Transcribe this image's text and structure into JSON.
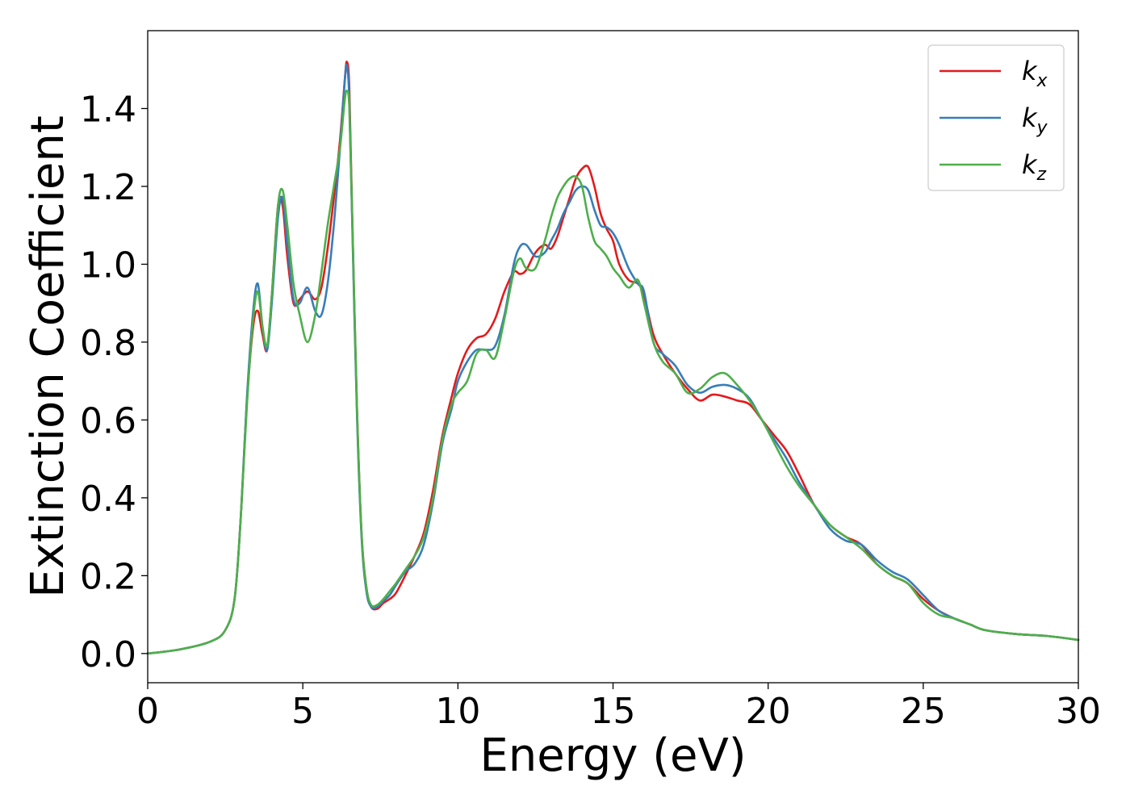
{
  "chart_data": {
    "type": "line",
    "title": "",
    "xlabel": "Energy (eV)",
    "ylabel": "Extinction Coefficient",
    "xlim": [
      0,
      30
    ],
    "ylim": [
      -0.075,
      1.6
    ],
    "xticks": [
      0,
      5,
      10,
      15,
      20,
      25,
      30
    ],
    "xtick_labels": [
      "0",
      "5",
      "10",
      "15",
      "20",
      "25",
      "30"
    ],
    "yticks": [
      0.0,
      0.2,
      0.4,
      0.6,
      0.8,
      1.0,
      1.2,
      1.4
    ],
    "ytick_labels": [
      "0.0",
      "0.2",
      "0.4",
      "0.6",
      "0.8",
      "1.0",
      "1.2",
      "1.4"
    ],
    "grid": false,
    "legend_position": "top-right",
    "series": [
      {
        "name": "k",
        "subscript": "x",
        "color": "#e41a1c",
        "x": [
          0,
          1,
          2,
          2.5,
          2.8,
          3.0,
          3.2,
          3.4,
          3.55,
          3.7,
          3.85,
          4.0,
          4.2,
          4.35,
          4.5,
          4.7,
          4.9,
          5.15,
          5.4,
          5.6,
          5.8,
          6.0,
          6.2,
          6.35,
          6.42,
          6.5,
          6.6,
          6.75,
          6.9,
          7.05,
          7.2,
          7.4,
          7.6,
          7.8,
          8.0,
          8.3,
          8.6,
          8.9,
          9.2,
          9.5,
          9.8,
          10.0,
          10.3,
          10.6,
          10.9,
          11.2,
          11.5,
          11.8,
          12.0,
          12.2,
          12.5,
          12.8,
          13.0,
          13.2,
          13.4,
          13.6,
          13.8,
          14.0,
          14.2,
          14.4,
          14.6,
          14.8,
          15.0,
          15.2,
          15.5,
          15.8,
          16.0,
          16.3,
          16.6,
          17.0,
          17.4,
          17.8,
          18.2,
          18.6,
          19.0,
          19.4,
          19.8,
          20.2,
          20.6,
          21.0,
          21.5,
          22.0,
          22.5,
          23.0,
          23.5,
          24.0,
          24.5,
          25.0,
          25.5,
          26.0,
          26.5,
          27.0,
          28.0,
          29.0,
          30.0
        ],
        "y": [
          0.0,
          0.01,
          0.03,
          0.06,
          0.14,
          0.35,
          0.65,
          0.84,
          0.88,
          0.82,
          0.78,
          0.92,
          1.15,
          1.15,
          1.02,
          0.9,
          0.91,
          0.93,
          0.91,
          0.94,
          1.04,
          1.17,
          1.32,
          1.47,
          1.52,
          1.45,
          1.1,
          0.62,
          0.3,
          0.17,
          0.12,
          0.115,
          0.13,
          0.14,
          0.155,
          0.2,
          0.25,
          0.31,
          0.42,
          0.56,
          0.66,
          0.72,
          0.78,
          0.81,
          0.82,
          0.86,
          0.93,
          0.98,
          0.975,
          0.985,
          1.03,
          1.05,
          1.04,
          1.07,
          1.12,
          1.17,
          1.22,
          1.245,
          1.25,
          1.2,
          1.13,
          1.09,
          1.06,
          1.0,
          0.96,
          0.95,
          0.92,
          0.82,
          0.77,
          0.72,
          0.68,
          0.65,
          0.665,
          0.66,
          0.65,
          0.64,
          0.6,
          0.56,
          0.52,
          0.46,
          0.38,
          0.33,
          0.3,
          0.28,
          0.23,
          0.2,
          0.18,
          0.14,
          0.11,
          0.09,
          0.075,
          0.06,
          0.05,
          0.045,
          0.035
        ]
      },
      {
        "name": "k",
        "subscript": "y",
        "color": "#377eb8",
        "x": [
          0,
          1,
          2,
          2.5,
          2.8,
          3.0,
          3.2,
          3.4,
          3.55,
          3.7,
          3.85,
          4.0,
          4.2,
          4.35,
          4.5,
          4.7,
          4.9,
          5.15,
          5.4,
          5.6,
          5.8,
          6.0,
          6.2,
          6.35,
          6.42,
          6.5,
          6.6,
          6.75,
          6.9,
          7.05,
          7.2,
          7.4,
          7.6,
          7.8,
          8.0,
          8.3,
          8.6,
          8.9,
          9.2,
          9.5,
          9.8,
          10.0,
          10.3,
          10.6,
          10.9,
          11.2,
          11.5,
          11.8,
          12.0,
          12.2,
          12.5,
          12.8,
          13.0,
          13.2,
          13.4,
          13.6,
          13.8,
          14.0,
          14.2,
          14.4,
          14.6,
          14.8,
          15.0,
          15.2,
          15.5,
          15.8,
          16.0,
          16.3,
          16.6,
          17.0,
          17.4,
          17.8,
          18.2,
          18.6,
          19.0,
          19.4,
          19.8,
          20.2,
          20.6,
          21.0,
          21.5,
          22.0,
          22.5,
          23.0,
          23.5,
          24.0,
          24.5,
          25.0,
          25.5,
          26.0,
          26.5,
          27.0,
          28.0,
          29.0,
          30.0
        ],
        "y": [
          0.0,
          0.01,
          0.03,
          0.06,
          0.14,
          0.35,
          0.66,
          0.88,
          0.95,
          0.84,
          0.78,
          0.9,
          1.12,
          1.17,
          1.05,
          0.91,
          0.9,
          0.94,
          0.88,
          0.87,
          0.95,
          1.1,
          1.3,
          1.47,
          1.51,
          1.42,
          1.08,
          0.6,
          0.29,
          0.16,
          0.12,
          0.12,
          0.135,
          0.15,
          0.175,
          0.21,
          0.23,
          0.28,
          0.39,
          0.54,
          0.63,
          0.7,
          0.75,
          0.78,
          0.78,
          0.79,
          0.87,
          1.0,
          1.045,
          1.05,
          1.02,
          1.03,
          1.06,
          1.09,
          1.13,
          1.16,
          1.19,
          1.2,
          1.19,
          1.14,
          1.1,
          1.095,
          1.08,
          1.05,
          0.99,
          0.95,
          0.93,
          0.8,
          0.77,
          0.74,
          0.69,
          0.67,
          0.685,
          0.69,
          0.68,
          0.655,
          0.6,
          0.55,
          0.5,
          0.44,
          0.38,
          0.32,
          0.29,
          0.28,
          0.24,
          0.21,
          0.19,
          0.15,
          0.11,
          0.09,
          0.075,
          0.06,
          0.05,
          0.045,
          0.035
        ]
      },
      {
        "name": "k",
        "subscript": "z",
        "color": "#4daf4a",
        "x": [
          0,
          1,
          2,
          2.5,
          2.8,
          3.0,
          3.2,
          3.4,
          3.55,
          3.7,
          3.85,
          4.0,
          4.2,
          4.35,
          4.5,
          4.7,
          4.9,
          5.15,
          5.4,
          5.6,
          5.8,
          6.0,
          6.2,
          6.35,
          6.42,
          6.5,
          6.6,
          6.75,
          6.9,
          7.05,
          7.2,
          7.4,
          7.6,
          7.8,
          8.0,
          8.3,
          8.6,
          8.9,
          9.2,
          9.5,
          9.8,
          10.0,
          10.3,
          10.6,
          10.9,
          11.2,
          11.5,
          11.8,
          12.0,
          12.2,
          12.5,
          12.8,
          13.0,
          13.2,
          13.4,
          13.6,
          13.8,
          14.0,
          14.2,
          14.4,
          14.6,
          14.8,
          15.0,
          15.2,
          15.5,
          15.8,
          16.0,
          16.3,
          16.6,
          17.0,
          17.4,
          17.8,
          18.2,
          18.6,
          19.0,
          19.4,
          19.8,
          20.2,
          20.6,
          21.0,
          21.5,
          22.0,
          22.5,
          23.0,
          23.5,
          24.0,
          24.5,
          25.0,
          25.5,
          26.0,
          26.5,
          27.0,
          28.0,
          29.0,
          30.0
        ],
        "y": [
          0.0,
          0.01,
          0.03,
          0.06,
          0.14,
          0.35,
          0.64,
          0.86,
          0.93,
          0.84,
          0.79,
          0.92,
          1.15,
          1.19,
          1.1,
          0.95,
          0.87,
          0.8,
          0.87,
          0.98,
          1.1,
          1.2,
          1.3,
          1.42,
          1.445,
          1.4,
          1.1,
          0.62,
          0.3,
          0.17,
          0.125,
          0.125,
          0.14,
          0.16,
          0.18,
          0.215,
          0.25,
          0.3,
          0.4,
          0.55,
          0.64,
          0.67,
          0.7,
          0.77,
          0.78,
          0.76,
          0.86,
          0.98,
          1.015,
          0.99,
          0.99,
          1.06,
          1.12,
          1.17,
          1.2,
          1.22,
          1.225,
          1.2,
          1.12,
          1.06,
          1.04,
          1.02,
          0.99,
          0.97,
          0.94,
          0.96,
          0.9,
          0.8,
          0.75,
          0.72,
          0.67,
          0.68,
          0.71,
          0.72,
          0.69,
          0.65,
          0.6,
          0.54,
          0.48,
          0.43,
          0.38,
          0.33,
          0.3,
          0.27,
          0.23,
          0.2,
          0.18,
          0.13,
          0.1,
          0.09,
          0.075,
          0.06,
          0.05,
          0.045,
          0.035
        ]
      }
    ]
  }
}
